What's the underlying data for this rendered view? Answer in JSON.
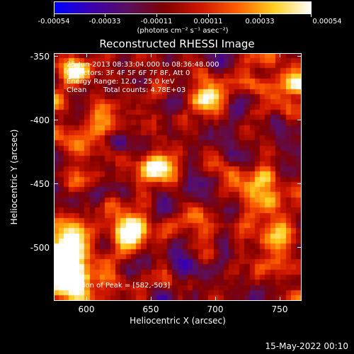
{
  "colorbar": {
    "tick_labels": [
      "-0.00054",
      "-0.00033",
      "-0.00011",
      "0.00011",
      "0.00033",
      "0.00054"
    ],
    "units": "(photons cm⁻² s⁻¹ asec⁻²)",
    "stops": [
      "#0000ff",
      "#3a00b0",
      "#5a1060",
      "#800000",
      "#d01800",
      "#ff6000",
      "#ffd020",
      "#ffffff"
    ]
  },
  "title": "Reconstructed RHESSI Image",
  "annotations": {
    "time_range": "25-Jun-2013 08:33:04.000 to 08:36:48.000",
    "detectors": "Detectors: 3F 4F 5F 6F 7F 8F, Att 0",
    "energy": "Energy Range: 12.0 - 25.0 keV",
    "algorithm": "Clean",
    "counts": "Total counts: 4.78E+03",
    "peak": "Position of Peak = [582,-503]"
  },
  "axes": {
    "x_title": "Heliocentric X (arcsec)",
    "y_title": "Heliocentric Y (arcsec)",
    "x_range": [
      575,
      765
    ],
    "y_range": [
      -540,
      -345
    ],
    "x_ticks": [
      "600",
      "650",
      "700",
      "750"
    ],
    "y_ticks": [
      "-350",
      "-400",
      "-450",
      "-500"
    ]
  },
  "timestamp": "15-May-2022 00:10"
}
